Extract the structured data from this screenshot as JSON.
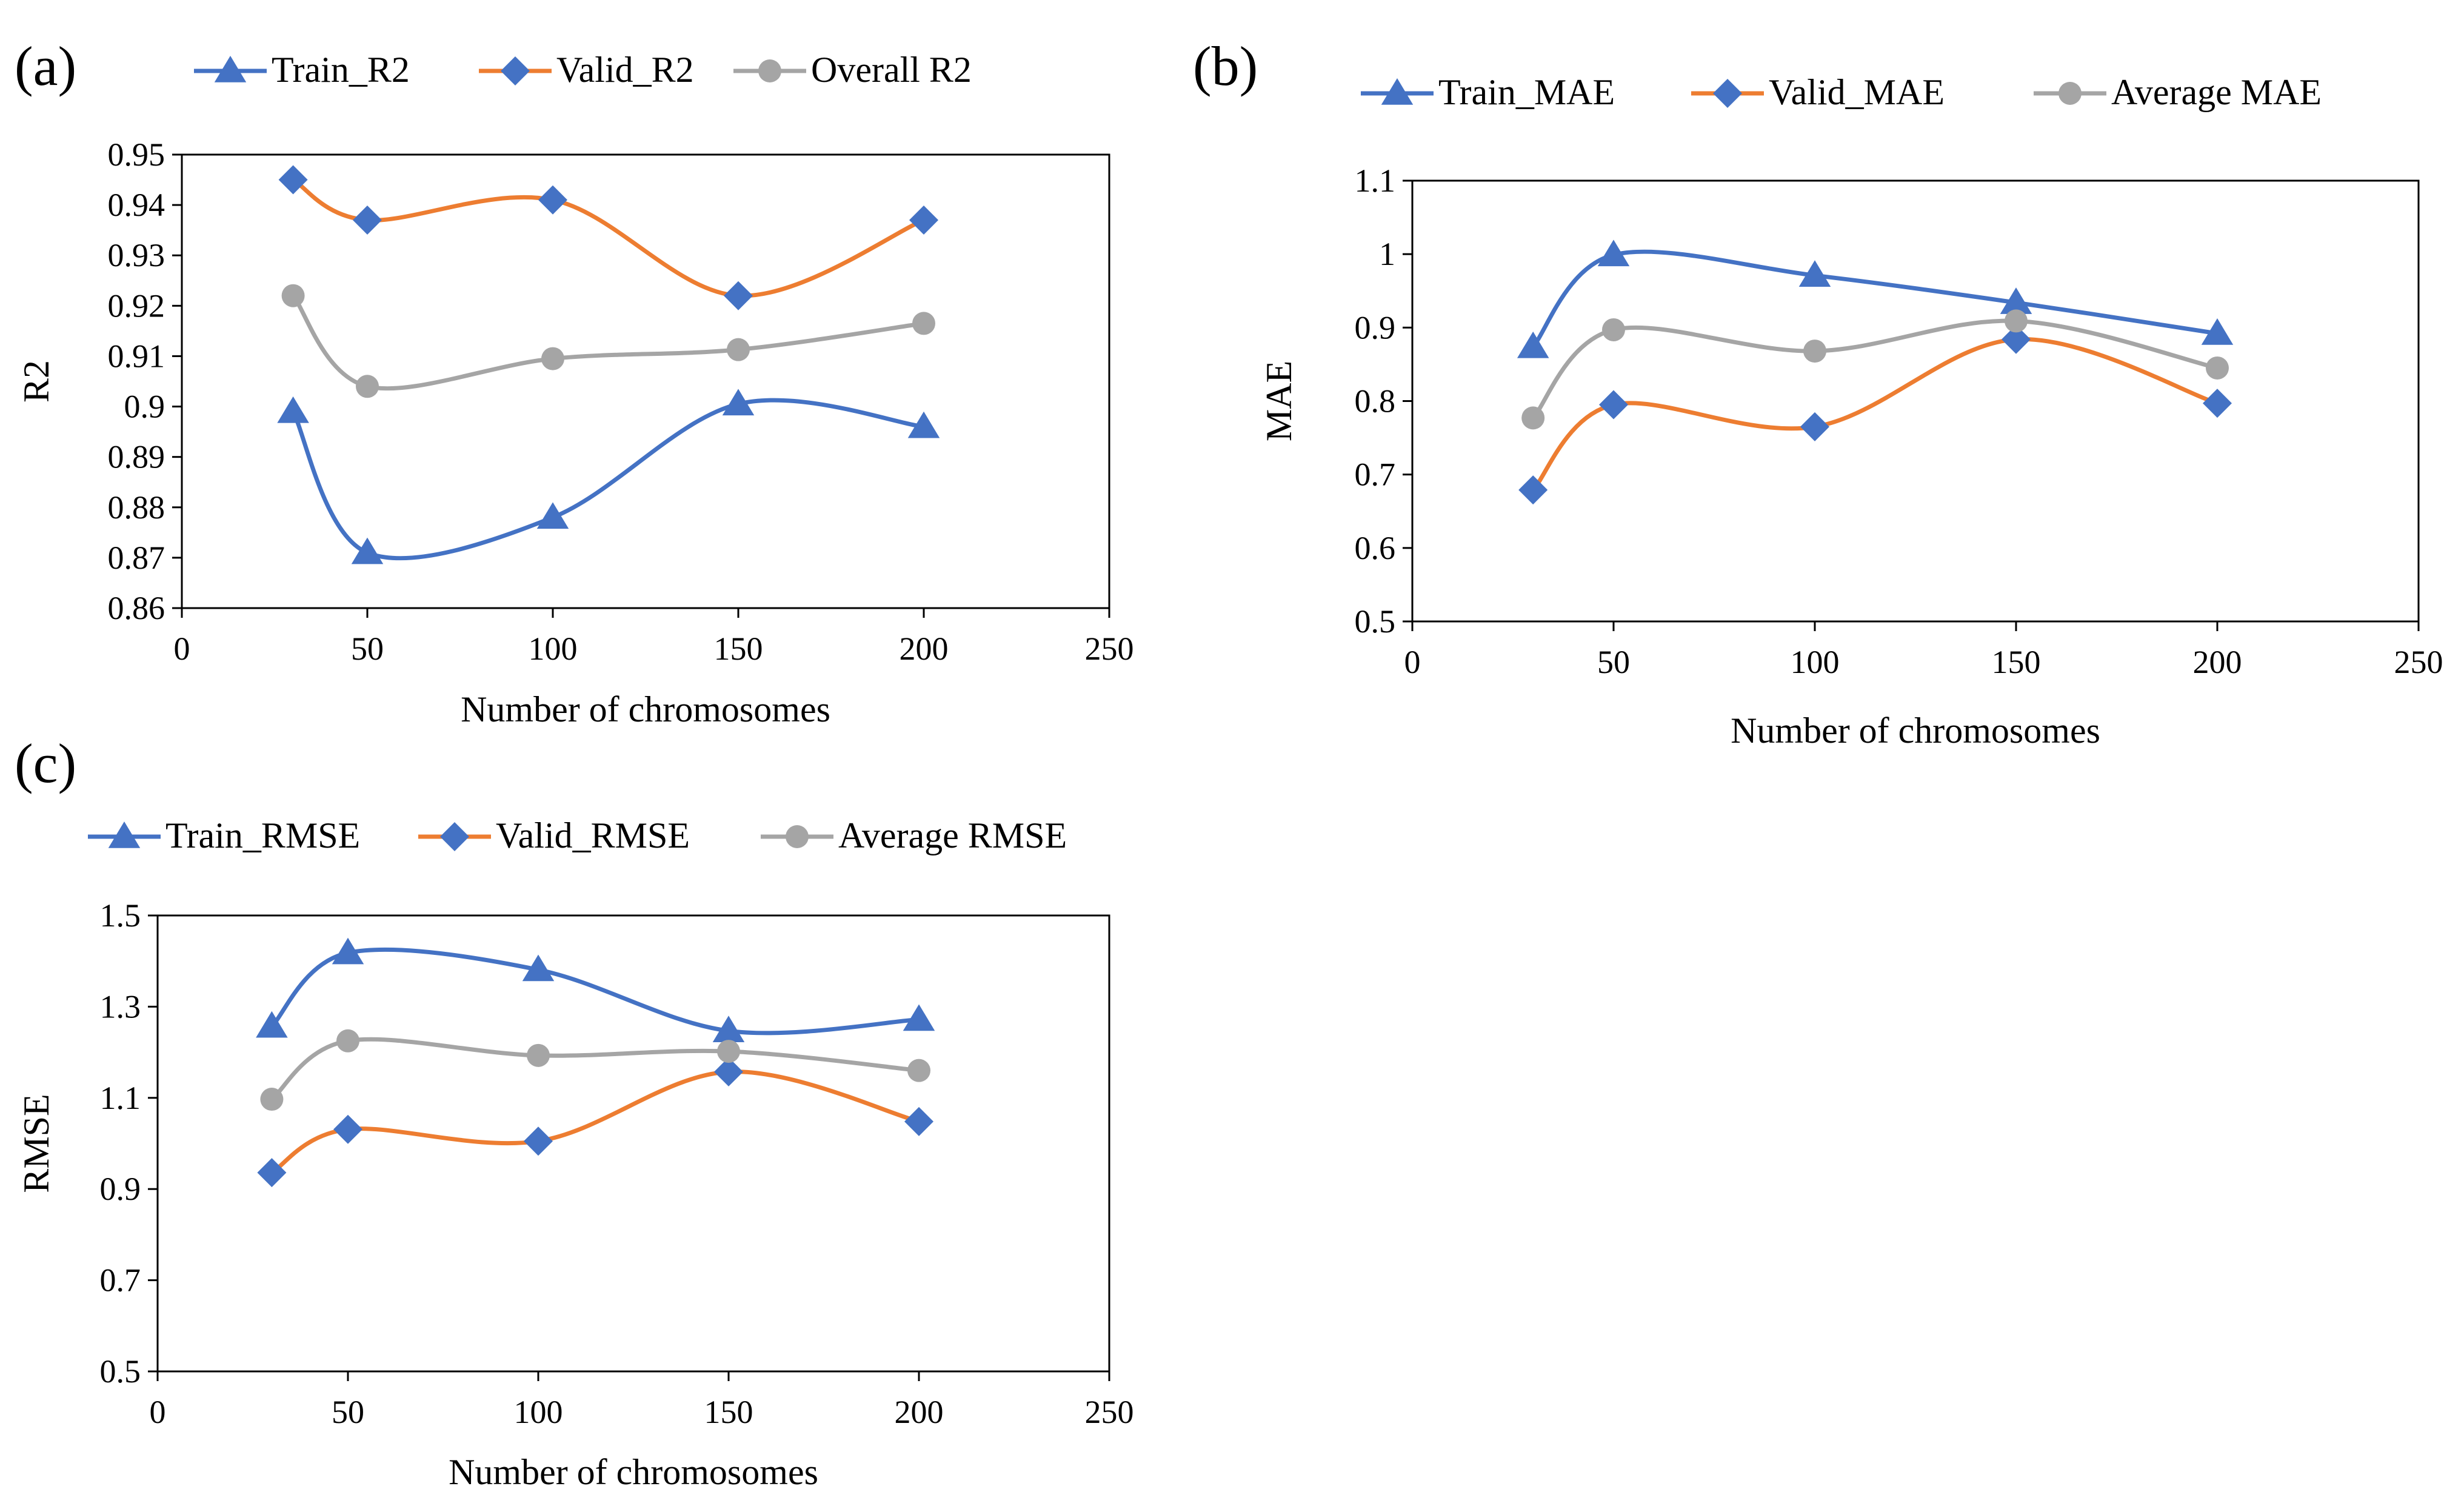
{
  "chart_data": [
    {
      "panel_label": "(a)",
      "type": "line",
      "smooth": true,
      "xlabel": "Number of chromosomes",
      "ylabel": "R2",
      "xlim": [
        0,
        250
      ],
      "ylim": [
        0.86,
        0.95
      ],
      "xticks": [
        0,
        50,
        100,
        150,
        200,
        250
      ],
      "yticks": [
        0.86,
        0.87,
        0.88,
        0.89,
        0.9,
        0.91,
        0.92,
        0.93,
        0.94,
        0.95
      ],
      "ytick_labels": [
        "0.86",
        "0.87",
        "0.88",
        "0.89",
        "0.9",
        "0.91",
        "0.92",
        "0.93",
        "0.94",
        "0.95"
      ],
      "grid": false,
      "legend": "top",
      "x": [
        30,
        50,
        100,
        150,
        200
      ],
      "series": [
        {
          "name": "Train_R2",
          "marker": "triangle",
          "color": "#4472C4",
          "values": [
            0.899,
            0.871,
            0.878,
            0.9005,
            0.896
          ]
        },
        {
          "name": "Valid_R2",
          "marker": "diamond",
          "color": "#ED7D31",
          "marker_color": "#4472C4",
          "values": [
            0.945,
            0.937,
            0.941,
            0.922,
            0.937
          ]
        },
        {
          "name": "Overall R2",
          "marker": "circle",
          "color": "#A5A5A5",
          "values": [
            0.922,
            0.904,
            0.9095,
            0.9113,
            0.9165
          ]
        }
      ]
    },
    {
      "panel_label": "(b)",
      "type": "line",
      "smooth": true,
      "xlabel": "Number of chromosomes",
      "ylabel": "MAE",
      "xlim": [
        0,
        250
      ],
      "ylim": [
        0.5,
        1.1
      ],
      "xticks": [
        0,
        50,
        100,
        150,
        200,
        250
      ],
      "yticks": [
        0.5,
        0.6,
        0.7,
        0.8,
        0.9,
        1.0,
        1.1
      ],
      "ytick_labels": [
        "0.5",
        "0.6",
        "0.7",
        "0.8",
        "0.9",
        "1",
        "1.1"
      ],
      "grid": false,
      "legend": "top",
      "x": [
        30,
        50,
        100,
        150,
        200
      ],
      "series": [
        {
          "name": "Train_MAE",
          "marker": "triangle",
          "color": "#4472C4",
          "values": [
            0.874,
            0.999,
            0.971,
            0.934,
            0.892
          ]
        },
        {
          "name": "Valid_MAE",
          "marker": "diamond",
          "color": "#ED7D31",
          "marker_color": "#4472C4",
          "values": [
            0.679,
            0.795,
            0.765,
            0.884,
            0.797
          ]
        },
        {
          "name": "Average MAE",
          "marker": "circle",
          "color": "#A5A5A5",
          "values": [
            0.777,
            0.897,
            0.868,
            0.909,
            0.845
          ]
        }
      ]
    },
    {
      "panel_label": "(c)",
      "type": "line",
      "smooth": true,
      "xlabel": "Number of chromosomes",
      "ylabel": "RMSE",
      "xlim": [
        0,
        250
      ],
      "ylim": [
        0.5,
        1.5
      ],
      "xticks": [
        0,
        50,
        100,
        150,
        200,
        250
      ],
      "yticks": [
        0.5,
        0.7,
        0.9,
        1.1,
        1.3,
        1.5
      ],
      "ytick_labels": [
        "0.5",
        "0.7",
        "0.9",
        "1.1",
        "1.3",
        "1.5"
      ],
      "grid": false,
      "legend": "top",
      "x": [
        30,
        50,
        100,
        150,
        200
      ],
      "series": [
        {
          "name": "Train_RMSE",
          "marker": "triangle",
          "color": "#4472C4",
          "values": [
            1.257,
            1.418,
            1.381,
            1.247,
            1.272
          ]
        },
        {
          "name": "Valid_RMSE",
          "marker": "diamond",
          "color": "#ED7D31",
          "marker_color": "#4472C4",
          "values": [
            0.936,
            1.031,
            1.005,
            1.157,
            1.048
          ]
        },
        {
          "name": "Average RMSE",
          "marker": "circle",
          "color": "#A5A5A5",
          "values": [
            1.097,
            1.225,
            1.193,
            1.202,
            1.16
          ]
        }
      ]
    }
  ]
}
